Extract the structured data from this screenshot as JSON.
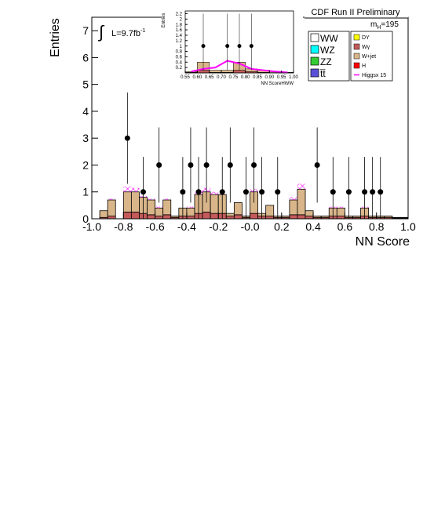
{
  "chart_data": [
    {
      "type": "histogram",
      "experiment": "CDF Run II Preliminary",
      "mass_label": {
        "symbol": "m",
        "subscript": "H",
        "text": "=195"
      },
      "lumi": {
        "integral": "∫",
        "text": "L=9.7fb",
        "superscript": "-1"
      },
      "xlabel": "NN Score",
      "ylabel": "Entries",
      "xlim": [
        -1,
        1
      ],
      "ylim": [
        0,
        7.5
      ],
      "xticks": [
        {
          "value": -1,
          "label": "-1.0"
        },
        -0.8,
        -0.6,
        -0.4,
        -0.2,
        {
          "value": 0,
          "label": "-0.0"
        },
        0.2,
        0.4,
        0.6,
        0.8,
        {
          "value": 1,
          "label": "1.0"
        }
      ],
      "yticks": [
        0,
        1,
        2,
        3,
        4,
        5,
        6,
        7
      ],
      "bins": [
        -1,
        -0.95,
        -0.9,
        -0.85,
        -0.8,
        -0.75,
        -0.7,
        -0.65,
        -0.6,
        -0.55,
        -0.5,
        -0.45,
        -0.4,
        -0.35,
        -0.3,
        -0.25,
        -0.2,
        -0.15,
        -0.1,
        -0.05,
        0,
        0.05,
        0.1,
        0.15,
        0.2,
        0.25,
        0.3,
        0.35,
        0.4,
        0.45,
        0.5,
        0.55,
        0.6,
        0.65,
        0.7,
        0.75,
        0.8,
        0.85,
        0.9,
        0.95,
        1
      ],
      "series": [
        {
          "name": "WW",
          "color": "#ffffff",
          "values": [
            0,
            0,
            0,
            0,
            0,
            0,
            0,
            0,
            0,
            0,
            0,
            0,
            0,
            0,
            0,
            0,
            0,
            0,
            0,
            0,
            0,
            0,
            0,
            0,
            0,
            0,
            0,
            0,
            0,
            0,
            0,
            0,
            0,
            0,
            0,
            0,
            0,
            0,
            0,
            0
          ]
        },
        {
          "name": "WZ",
          "color": "#00ffff",
          "values": [
            0,
            0,
            0,
            0,
            0,
            0,
            0,
            0,
            0,
            0,
            0,
            0,
            0,
            0,
            0,
            0,
            0,
            0,
            0,
            0,
            0,
            0,
            0,
            0,
            0,
            0,
            0,
            0,
            0,
            0,
            0,
            0,
            0,
            0,
            0,
            0,
            0,
            0,
            0,
            0
          ]
        },
        {
          "name": "ZZ",
          "color": "#33cc33",
          "values": [
            0,
            0,
            0,
            0,
            0,
            0,
            0,
            0,
            0,
            0,
            0,
            0,
            0,
            0,
            0,
            0,
            0,
            0,
            0,
            0,
            0,
            0,
            0,
            0,
            0,
            0,
            0,
            0,
            0,
            0,
            0,
            0,
            0,
            0,
            0,
            0,
            0,
            0,
            0,
            0
          ]
        },
        {
          "name": "t̄t̄",
          "color": "#5a50d8",
          "values": [
            0,
            0,
            0,
            0,
            0,
            0,
            0,
            0,
            0,
            0,
            0,
            0,
            0,
            0,
            0,
            0,
            0,
            0,
            0,
            0,
            0,
            0,
            0,
            0,
            0,
            0,
            0,
            0,
            0,
            0,
            0,
            0,
            0,
            0,
            0,
            0,
            0,
            0,
            0,
            0
          ]
        },
        {
          "name": "DY",
          "color": "#ffff00",
          "values": [
            0,
            0,
            0,
            0,
            0,
            0,
            0,
            0,
            0,
            0,
            0,
            0,
            0,
            0,
            0,
            0,
            0,
            0,
            0,
            0,
            0,
            0,
            0,
            0,
            0,
            0,
            0,
            0,
            0,
            0,
            0,
            0,
            0,
            0,
            0,
            0,
            0,
            0,
            0,
            0
          ]
        },
        {
          "name": "Wγ",
          "color": "#c45a5a",
          "values": [
            0,
            0.05,
            0.1,
            0,
            0.25,
            0.25,
            0.2,
            0.15,
            0.1,
            0.15,
            0.05,
            0.1,
            0.1,
            0.2,
            0.25,
            0.2,
            0.2,
            0.1,
            0.15,
            0.05,
            0.2,
            0.1,
            0.1,
            0.05,
            0.05,
            0.15,
            0.15,
            0.1,
            0.05,
            0.05,
            0.1,
            0.1,
            0.05,
            0.05,
            0.1,
            0.05,
            0.05,
            0.05,
            0.03,
            0.03
          ]
        },
        {
          "name": "W+jet",
          "color": "#d9b68a",
          "values": [
            0,
            0.25,
            0.6,
            0,
            0.75,
            0.75,
            0.6,
            0.55,
            0.3,
            0.55,
            0.05,
            0.3,
            0.3,
            0.7,
            0.75,
            0.7,
            0.7,
            0.1,
            0.45,
            0.05,
            0.8,
            0.1,
            0.4,
            0.05,
            0.05,
            0.55,
            0.95,
            0.2,
            0.05,
            0.05,
            0.3,
            0.3,
            0.05,
            0.05,
            0.3,
            0.05,
            0.05,
            0.05,
            0.02,
            0.02
          ]
        },
        {
          "name": "H",
          "color": "#ff0000",
          "values": [
            0,
            0,
            0,
            0,
            0,
            0,
            0,
            0,
            0,
            0,
            0,
            0,
            0,
            0,
            0,
            0,
            0,
            0,
            0,
            0,
            0,
            0,
            0,
            0,
            0,
            0,
            0,
            0,
            0,
            0,
            0,
            0,
            0,
            0,
            0,
            0,
            0,
            0,
            0,
            0
          ]
        }
      ],
      "signal": {
        "name": "Higgsx 15",
        "color": "#ff00ff",
        "values": [
          0,
          0,
          0.05,
          0,
          0.2,
          0.15,
          0.05,
          0.05,
          0.05,
          0.05,
          0,
          0,
          0.05,
          0.15,
          0.15,
          0.1,
          0.05,
          0,
          0,
          0,
          0.1,
          0,
          0,
          0,
          0,
          0.1,
          0.2,
          0,
          0,
          0,
          0.05,
          0.05,
          0,
          0,
          0.05,
          0,
          0,
          0,
          0,
          0
        ]
      },
      "data_points": {
        "x": [
          -0.775,
          -0.675,
          -0.575,
          -0.425,
          -0.375,
          -0.325,
          -0.275,
          -0.175,
          -0.125,
          -0.025,
          0.025,
          0.075,
          0.175,
          0.425,
          0.525,
          0.625,
          0.725,
          0.775,
          0.825
        ],
        "y": [
          3,
          1,
          2,
          1,
          2,
          1,
          2,
          1,
          2,
          1,
          2,
          1,
          1,
          2,
          1,
          1,
          1,
          1,
          1
        ],
        "err_up": [
          1.7,
          1.3,
          1.4,
          1.3,
          1.4,
          1.3,
          1.4,
          1.3,
          1.4,
          1.3,
          1.4,
          1.3,
          1.3,
          1.4,
          1.3,
          1.3,
          1.3,
          1.3,
          1.3
        ],
        "err_down": [
          1.7,
          1,
          1.4,
          1,
          1.4,
          1,
          1.4,
          1,
          1.4,
          1,
          1.4,
          1,
          1,
          1.4,
          1,
          1,
          1,
          1,
          1
        ]
      }
    },
    {
      "type": "histogram",
      "xlabel": "NN ScoreHWW",
      "ylabel": "Entries",
      "xlim": [
        0.55,
        1
      ],
      "ylim": [
        0,
        2.3
      ],
      "xticks": [
        0.55,
        {
          "value": 0.6,
          "label": "0.60"
        },
        0.65,
        {
          "value": 0.7,
          "label": "0.70"
        },
        0.75,
        {
          "value": 0.8,
          "label": "0.80"
        },
        0.85,
        {
          "value": 0.9,
          "label": "0.90"
        },
        0.95,
        {
          "value": 1,
          "label": "1.00"
        }
      ],
      "yticks": [
        0.2,
        0.4,
        0.6,
        0.8,
        1,
        1.2,
        1.4,
        1.6,
        1.8,
        2,
        2.2
      ],
      "bins": [
        0.55,
        0.6,
        0.65,
        0.7,
        0.75,
        0.8,
        0.85,
        0.9,
        0.95,
        1
      ],
      "series": [
        {
          "name": "Wγ",
          "color": "#c45a5a",
          "values": [
            0.02,
            0.1,
            0.02,
            0.02,
            0.1,
            0.05,
            0.02,
            0.01,
            0.01
          ]
        },
        {
          "name": "W+jet",
          "color": "#d9b68a",
          "values": [
            0.03,
            0.3,
            0.08,
            0.08,
            0.3,
            0.1,
            0.08,
            0.04,
            0.01
          ]
        }
      ],
      "signal_line": {
        "color": "#ff00ff",
        "values": [
          0.05,
          0.15,
          0.2,
          0.45,
          0.35,
          0.15,
          0.1,
          0.05,
          0.02
        ]
      },
      "data_points": {
        "x": [
          0.625,
          0.725,
          0.775,
          0.825
        ],
        "y": [
          1,
          1,
          1,
          1
        ],
        "err_up": [
          1.2,
          1.2,
          1.2,
          1.2
        ],
        "err_down": [
          0.9,
          0.9,
          0.9,
          0.9
        ]
      }
    }
  ]
}
